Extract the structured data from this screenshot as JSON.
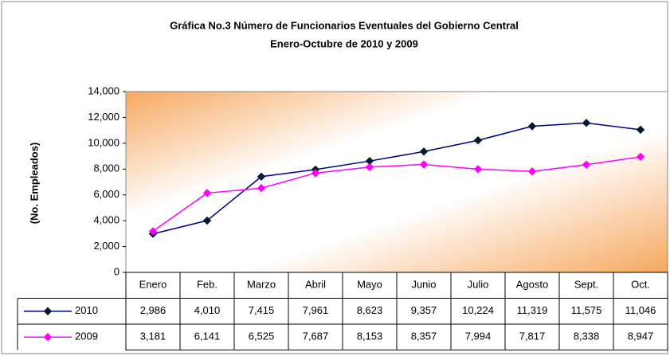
{
  "chart_data": {
    "type": "line",
    "title": "Gráfica No.3 Número de Funcionarios Eventuales del Gobierno Central",
    "subtitle": "Enero-Octubre de 2010 y 2009",
    "y_axis_label": "(No. Empleados)",
    "categories": [
      "Enero",
      "Feb.",
      "Marzo",
      "Abril",
      "Mayo",
      "Junio",
      "Julio",
      "Agosto",
      "Sept.",
      "Oct."
    ],
    "series": [
      {
        "name": "2010",
        "color": "#000080",
        "marker_color": "#001a33",
        "values": [
          2986,
          4010,
          7415,
          7961,
          8623,
          9357,
          10224,
          11319,
          11575,
          11046
        ],
        "value_labels": [
          "2,986",
          "4,010",
          "7,415",
          "7,961",
          "8,623",
          "9,357",
          "10,224",
          "11,319",
          "11,575",
          "11,046"
        ]
      },
      {
        "name": "2009",
        "color": "#ff00ff",
        "marker_color": "#ff00ff",
        "values": [
          3181,
          6141,
          6525,
          7687,
          8153,
          8357,
          7994,
          7817,
          8338,
          8947
        ],
        "value_labels": [
          "3,181",
          "6,141",
          "6,525",
          "7,687",
          "8,153",
          "8,357",
          "7,994",
          "7,817",
          "8,338",
          "8,947"
        ]
      }
    ],
    "ylim": [
      0,
      14000
    ],
    "yticks": [
      0,
      {
        "value": 2000,
        "label": "2,000"
      },
      {
        "value": 4000,
        "label": "4,000"
      },
      {
        "value": 6000,
        "label": "6,000"
      },
      {
        "value": 8000,
        "label": "8,000"
      },
      {
        "value": 10000,
        "label": "10,000"
      },
      {
        "value": 12000,
        "label": "12,000"
      },
      {
        "value": 14000,
        "label": "14,000"
      }
    ],
    "grid": false
  }
}
